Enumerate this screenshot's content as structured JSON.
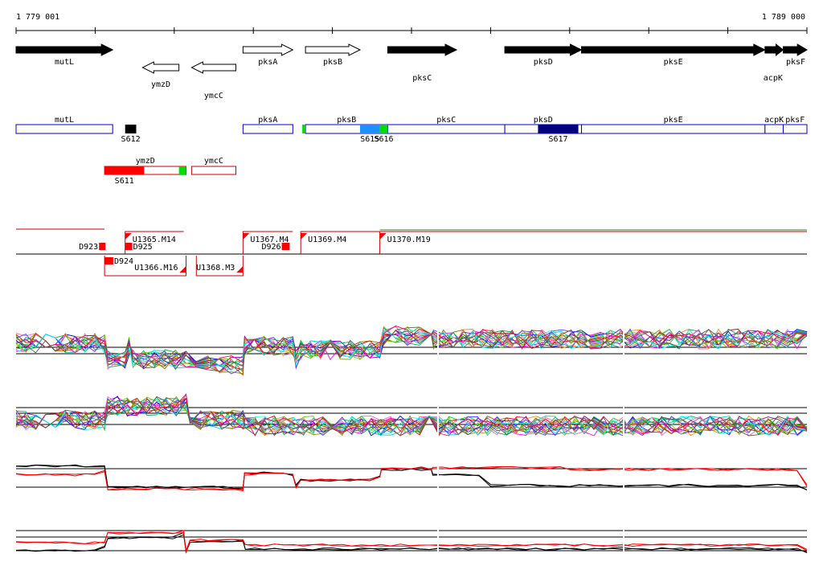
{
  "coordinates": {
    "start": "1 779 001",
    "end": "1 789 000"
  },
  "colors": {
    "gene_fill": "#000000",
    "segment_outline": "#0000cc",
    "antisense_outline": "#cc0000",
    "red_marker": "#ff0000",
    "green_marker": "#00dd00",
    "light_blue_marker": "#1e90ff",
    "dark_blue_marker": "#000080",
    "black_marker": "#000000"
  },
  "genes": [
    {
      "name": "mutL",
      "start": 1779001,
      "end": 1780222,
      "strand": "+",
      "filled": true
    },
    {
      "name": "ymzD",
      "start": 1780600,
      "end": 1781060,
      "strand": "-",
      "filled": false
    },
    {
      "name": "ymcC",
      "start": 1781220,
      "end": 1781780,
      "strand": "-",
      "filled": false
    },
    {
      "name": "pksA",
      "start": 1781870,
      "end": 1782500,
      "strand": "+",
      "filled": false
    },
    {
      "name": "pksB",
      "start": 1782660,
      "end": 1783350,
      "strand": "+",
      "filled": false
    },
    {
      "name": "pksC",
      "start": 1783700,
      "end": 1784570,
      "strand": "+",
      "filled": true
    },
    {
      "name": "pksD",
      "start": 1785180,
      "end": 1786150,
      "strand": "+",
      "filled": true
    },
    {
      "name": "pksE",
      "start": 1786150,
      "end": 1788470,
      "strand": "+",
      "filled": true
    },
    {
      "name": "acpK",
      "start": 1788470,
      "end": 1788700,
      "strand": "+",
      "filled": true
    },
    {
      "name": "pksF",
      "start": 1788700,
      "end": 1789000,
      "strand": "+",
      "filled": true
    }
  ],
  "segments": [
    {
      "label": "mutL",
      "start": 1779001,
      "end": 1780222
    },
    {
      "label": "pksA",
      "start": 1781870,
      "end": 1782500
    },
    {
      "label": "pksB",
      "start": 1782660,
      "end": 1783700
    },
    {
      "label": "pksC",
      "start": 1783700,
      "end": 1785180
    },
    {
      "label": "pksD",
      "start": 1785180,
      "end": 1786150
    },
    {
      "label": "pksE",
      "start": 1786150,
      "end": 1788470
    },
    {
      "label": "acpK",
      "start": 1788470,
      "end": 1788700
    },
    {
      "label": "pksF",
      "start": 1788700,
      "end": 1789000
    }
  ],
  "antisense_segments": [
    {
      "label": "ymzD",
      "start": 1780120,
      "end": 1781150
    },
    {
      "label": "ymcC",
      "start": 1781220,
      "end": 1781780
    }
  ],
  "markers": [
    {
      "label": "S612",
      "start": 1780380,
      "end": 1780520,
      "color": "black"
    },
    {
      "label": "",
      "start": 1782620,
      "end": 1782660,
      "color": "green"
    },
    {
      "label": "S615",
      "start": 1783350,
      "end": 1783600,
      "color": "light_blue"
    },
    {
      "label": "S616",
      "start": 1783600,
      "end": 1783700,
      "color": "green"
    },
    {
      "label": "S617",
      "start": 1785600,
      "end": 1786110,
      "color": "dark_blue"
    },
    {
      "label": "S611",
      "start": 1780120,
      "end": 1780620,
      "color": "red"
    },
    {
      "label": "",
      "start": 1781060,
      "end": 1781150,
      "color": "green"
    }
  ],
  "transcripts": [
    {
      "label": "D923",
      "start": 1780050,
      "end": 1780120,
      "kind": "box"
    },
    {
      "label": "D925",
      "start": 1780380,
      "end": 1780470,
      "kind": "box"
    },
    {
      "label": "D924",
      "start": 1780120,
      "end": 1780230,
      "kind": "box"
    },
    {
      "label": "D926",
      "start": 1782360,
      "end": 1782460,
      "kind": "box"
    },
    {
      "label": "U1365.M14",
      "start": 1780380,
      "end": 1781120,
      "kind": "upper"
    },
    {
      "label": "U1366.M16",
      "start": 1780120,
      "end": 1781150,
      "kind": "lower"
    },
    {
      "label": "U1367.M4",
      "start": 1781870,
      "end": 1782500,
      "kind": "upper"
    },
    {
      "label": "U1368.M3",
      "start": 1781280,
      "end": 1781870,
      "kind": "lower"
    },
    {
      "label": "U1369.M4",
      "start": 1782600,
      "end": 1783600,
      "kind": "upper"
    },
    {
      "label": "U1370.M19",
      "start": 1783600,
      "end": 1789000,
      "kind": "upper"
    }
  ],
  "chart_data": {
    "type": "line",
    "x_range": [
      1779001,
      1789000
    ],
    "x_label_start": "1 779 001",
    "x_label_end": "1 789 000",
    "panels": [
      {
        "name": "",
        "levels": [
          [
            1779001,
            0.62
          ],
          [
            1780120,
            0.62
          ],
          [
            1780160,
            0.18
          ],
          [
            1780380,
            0.2
          ],
          [
            1780430,
            0.55
          ],
          [
            1780480,
            0.2
          ],
          [
            1781150,
            0.2
          ],
          [
            1781280,
            0.05
          ],
          [
            1781870,
            0.05
          ],
          [
            1781890,
            0.55
          ],
          [
            1782500,
            0.55
          ],
          [
            1782540,
            0.2
          ],
          [
            1782600,
            0.45
          ],
          [
            1783600,
            0.45
          ],
          [
            1783650,
            0.8
          ],
          [
            1784250,
            0.8
          ],
          [
            1784280,
            0.72
          ],
          [
            1789000,
            0.72
          ]
        ]
      },
      {
        "name": "",
        "levels": [
          [
            1779001,
            0.4
          ],
          [
            1780120,
            0.4
          ],
          [
            1780160,
            0.75
          ],
          [
            1781150,
            0.85
          ],
          [
            1781200,
            0.4
          ],
          [
            1781870,
            0.4
          ],
          [
            1781900,
            0.25
          ],
          [
            1789000,
            0.25
          ]
        ]
      },
      {
        "name": "",
        "series": [
          {
            "color": "black",
            "levels": [
              [
                1779001,
                0.85
              ],
              [
                1780120,
                0.85
              ],
              [
                1780160,
                0.25
              ],
              [
                1781870,
                0.2
              ],
              [
                1781890,
                0.65
              ],
              [
                1782500,
                0.6
              ],
              [
                1782540,
                0.3
              ],
              [
                1782600,
                0.45
              ],
              [
                1783600,
                0.55
              ],
              [
                1783620,
                0.75
              ],
              [
                1784250,
                0.75
              ],
              [
                1784270,
                0.6
              ],
              [
                1785000,
                0.3
              ],
              [
                1789000,
                0.15
              ]
            ]
          },
          {
            "color": "red",
            "levels": [
              [
                1779001,
                0.6
              ],
              [
                1780120,
                0.7
              ],
              [
                1780160,
                0.2
              ],
              [
                1781870,
                0.18
              ],
              [
                1781890,
                0.62
              ],
              [
                1782500,
                0.6
              ],
              [
                1782540,
                0.25
              ],
              [
                1782600,
                0.45
              ],
              [
                1783600,
                0.55
              ],
              [
                1783620,
                0.8
              ],
              [
                1784250,
                0.75
              ],
              [
                1784270,
                0.8
              ],
              [
                1786000,
                0.75
              ],
              [
                1789000,
                0.3
              ]
            ]
          }
        ]
      },
      {
        "name": "",
        "series": [
          {
            "color": "black",
            "levels": [
              [
                1779001,
                0.15
              ],
              [
                1780120,
                0.3
              ],
              [
                1780160,
                0.65
              ],
              [
                1781120,
                0.8
              ],
              [
                1781150,
                0.1
              ],
              [
                1781200,
                0.5
              ],
              [
                1781870,
                0.5
              ],
              [
                1781900,
                0.2
              ],
              [
                1789000,
                0.05
              ]
            ]
          },
          {
            "color": "red",
            "levels": [
              [
                1779001,
                0.45
              ],
              [
                1780120,
                0.45
              ],
              [
                1780160,
                0.85
              ],
              [
                1781120,
                0.9
              ],
              [
                1781150,
                0.1
              ],
              [
                1781200,
                0.55
              ],
              [
                1781870,
                0.55
              ],
              [
                1781900,
                0.35
              ],
              [
                1789000,
                0.15
              ]
            ]
          }
        ]
      }
    ]
  }
}
